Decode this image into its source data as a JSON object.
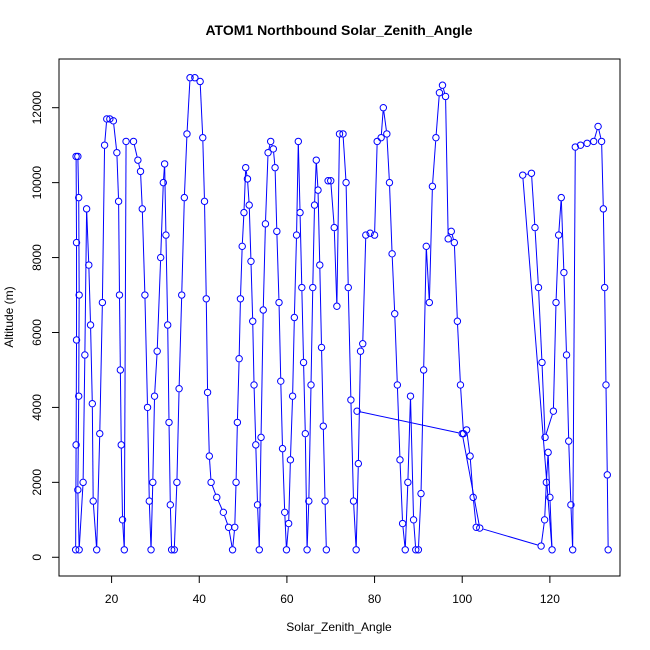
{
  "chart_data": {
    "type": "line",
    "title": "ATOM1 Northbound Solar_Zenith_Angle",
    "xlabel": "Solar_Zenith_Angle",
    "ylabel": "Altitude (m)",
    "xlim": [
      8,
      136
    ],
    "ylim": [
      -500,
      13300
    ],
    "xticks": [
      20,
      40,
      60,
      80,
      100,
      120
    ],
    "yticks": [
      0,
      2000,
      4000,
      6000,
      8000,
      10000,
      12000
    ],
    "marker": "open-circle",
    "color": "#0000ff",
    "grid": false,
    "series": [
      {
        "values": [
          [
            11.8,
            200
          ],
          [
            11.9,
            3000
          ],
          [
            12.0,
            5800
          ],
          [
            12.0,
            8400
          ],
          [
            11.9,
            10700
          ],
          [
            12.3,
            10700
          ],
          [
            12.5,
            9600
          ],
          [
            12.6,
            7000
          ],
          [
            12.5,
            4300
          ],
          [
            12.3,
            1800
          ],
          [
            12.6,
            200
          ],
          [
            13.5,
            2000
          ],
          [
            13.9,
            5400
          ],
          [
            14.3,
            9300
          ],
          [
            14.8,
            7800
          ],
          [
            15.2,
            6200
          ],
          [
            15.6,
            4100
          ],
          [
            15.8,
            1500
          ],
          [
            16.6,
            200
          ],
          [
            17.3,
            3300
          ],
          [
            17.9,
            6800
          ],
          [
            18.4,
            11000
          ],
          [
            18.9,
            11700
          ],
          [
            19.6,
            11700
          ],
          [
            20.4,
            11650
          ],
          [
            21.2,
            10800
          ],
          [
            21.6,
            9500
          ],
          [
            21.8,
            7000
          ],
          [
            22.0,
            5000
          ],
          [
            22.2,
            3000
          ],
          [
            22.5,
            1000
          ],
          [
            22.9,
            200
          ],
          [
            23.3,
            11100
          ],
          [
            25.0,
            11100
          ],
          [
            26.0,
            10600
          ],
          [
            26.6,
            10300
          ],
          [
            27.0,
            9300
          ],
          [
            27.6,
            7000
          ],
          [
            28.2,
            4000
          ],
          [
            28.6,
            1500
          ],
          [
            29.0,
            200
          ],
          [
            29.4,
            2000
          ],
          [
            29.8,
            4300
          ],
          [
            30.4,
            5500
          ],
          [
            31.2,
            8000
          ],
          [
            31.8,
            10000
          ],
          [
            32.1,
            10500
          ],
          [
            32.4,
            8600
          ],
          [
            32.8,
            6200
          ],
          [
            33.1,
            3600
          ],
          [
            33.4,
            1400
          ],
          [
            33.7,
            200
          ],
          [
            34.3,
            200
          ],
          [
            34.9,
            2000
          ],
          [
            35.4,
            4500
          ],
          [
            36.0,
            7000
          ],
          [
            36.6,
            9600
          ],
          [
            37.2,
            11300
          ],
          [
            37.9,
            12800
          ],
          [
            39.0,
            12800
          ],
          [
            40.2,
            12700
          ],
          [
            40.8,
            11200
          ],
          [
            41.2,
            9500
          ],
          [
            41.6,
            6900
          ],
          [
            41.9,
            4400
          ],
          [
            42.3,
            2700
          ],
          [
            42.7,
            2000
          ],
          [
            44.0,
            1600
          ],
          [
            45.5,
            1200
          ],
          [
            46.7,
            800
          ],
          [
            47.6,
            200
          ],
          [
            48.1,
            800
          ],
          [
            48.4,
            2000
          ],
          [
            48.7,
            3600
          ],
          [
            49.1,
            5300
          ],
          [
            49.4,
            6900
          ],
          [
            49.8,
            8300
          ],
          [
            50.2,
            9200
          ],
          [
            50.6,
            10400
          ],
          [
            51.0,
            10100
          ],
          [
            51.4,
            9400
          ],
          [
            51.8,
            7900
          ],
          [
            52.2,
            6300
          ],
          [
            52.5,
            4600
          ],
          [
            52.9,
            3000
          ],
          [
            53.3,
            1400
          ],
          [
            53.7,
            200
          ],
          [
            54.1,
            3200
          ],
          [
            54.6,
            6600
          ],
          [
            55.1,
            8900
          ],
          [
            55.7,
            10800
          ],
          [
            56.3,
            11100
          ],
          [
            56.9,
            10900
          ],
          [
            57.3,
            10400
          ],
          [
            57.7,
            8700
          ],
          [
            58.2,
            6800
          ],
          [
            58.6,
            4700
          ],
          [
            59.0,
            2900
          ],
          [
            59.5,
            1200
          ],
          [
            59.9,
            200
          ],
          [
            60.4,
            900
          ],
          [
            60.8,
            2600
          ],
          [
            61.3,
            4300
          ],
          [
            61.7,
            6400
          ],
          [
            62.2,
            8600
          ],
          [
            62.6,
            11100
          ],
          [
            63.0,
            9200
          ],
          [
            63.4,
            7200
          ],
          [
            63.8,
            5200
          ],
          [
            64.2,
            3300
          ],
          [
            64.6,
            200
          ],
          [
            65.0,
            1500
          ],
          [
            65.5,
            4600
          ],
          [
            65.9,
            7200
          ],
          [
            66.3,
            9400
          ],
          [
            66.7,
            10600
          ],
          [
            67.1,
            9800
          ],
          [
            67.5,
            7800
          ],
          [
            67.9,
            5600
          ],
          [
            68.3,
            3500
          ],
          [
            68.7,
            1500
          ],
          [
            69.0,
            200
          ]
        ]
      },
      {
        "values": [
          [
            69.4,
            10050
          ],
          [
            70.0,
            10050
          ],
          [
            70.8,
            8800
          ],
          [
            71.4,
            6700
          ],
          [
            72.0,
            11300
          ],
          [
            72.8,
            11300
          ],
          [
            73.5,
            10000
          ],
          [
            74.0,
            7200
          ],
          [
            74.6,
            4200
          ],
          [
            75.2,
            1500
          ],
          [
            75.8,
            200
          ],
          [
            76.3,
            2500
          ],
          [
            76.8,
            5500
          ],
          [
            77.3,
            5700
          ],
          [
            78.0,
            8600
          ],
          [
            79.0,
            8650
          ],
          [
            80.0,
            8600
          ],
          [
            80.6,
            11100
          ],
          [
            81.5,
            11200
          ],
          [
            82.0,
            12000
          ],
          [
            82.8,
            11300
          ],
          [
            83.4,
            10000
          ],
          [
            84.0,
            8100
          ],
          [
            84.6,
            6500
          ],
          [
            85.2,
            4600
          ],
          [
            85.8,
            2600
          ],
          [
            86.4,
            900
          ],
          [
            87.0,
            200
          ],
          [
            87.6,
            2000
          ],
          [
            88.2,
            4300
          ],
          [
            88.9,
            1000
          ],
          [
            89.4,
            200
          ],
          [
            90.0,
            200
          ],
          [
            90.6,
            1700
          ],
          [
            91.2,
            5000
          ],
          [
            91.8,
            8300
          ],
          [
            92.5,
            6800
          ],
          [
            93.2,
            9900
          ],
          [
            94.0,
            11200
          ],
          [
            94.8,
            12400
          ],
          [
            95.5,
            12600
          ],
          [
            96.2,
            12300
          ],
          [
            96.8,
            8500
          ],
          [
            97.5,
            8700
          ],
          [
            98.2,
            8400
          ],
          [
            98.9,
            6300
          ],
          [
            99.6,
            4600
          ],
          [
            100.3,
            3300
          ],
          [
            101.0,
            3400
          ],
          [
            101.8,
            2700
          ],
          [
            102.5,
            1600
          ],
          [
            103.2,
            800
          ]
        ]
      },
      {
        "values": [
          [
            76.0,
            3900
          ],
          [
            100.0,
            3300
          ],
          [
            104.0,
            780
          ],
          [
            118.0,
            300
          ],
          [
            118.8,
            1000
          ],
          [
            119.2,
            2000
          ],
          [
            119.6,
            2800
          ],
          [
            120.0,
            1600
          ],
          [
            120.5,
            200
          ],
          [
            113.8,
            10200
          ],
          [
            115.8,
            10250
          ],
          [
            116.6,
            8800
          ],
          [
            117.4,
            7200
          ],
          [
            118.2,
            5200
          ],
          [
            118.9,
            3200
          ],
          [
            120.8,
            3900
          ],
          [
            121.4,
            6800
          ],
          [
            122.0,
            8600
          ],
          [
            122.6,
            9600
          ],
          [
            123.2,
            7600
          ],
          [
            123.8,
            5400
          ],
          [
            124.3,
            3100
          ],
          [
            124.8,
            1400
          ],
          [
            125.2,
            200
          ],
          [
            125.8,
            10950
          ],
          [
            127.0,
            11000
          ],
          [
            128.5,
            11050
          ],
          [
            130.0,
            11100
          ],
          [
            131.0,
            11500
          ],
          [
            131.8,
            11100
          ],
          [
            132.2,
            9300
          ],
          [
            132.5,
            7200
          ],
          [
            132.8,
            4600
          ],
          [
            133.1,
            2200
          ],
          [
            133.3,
            200
          ]
        ]
      }
    ]
  }
}
